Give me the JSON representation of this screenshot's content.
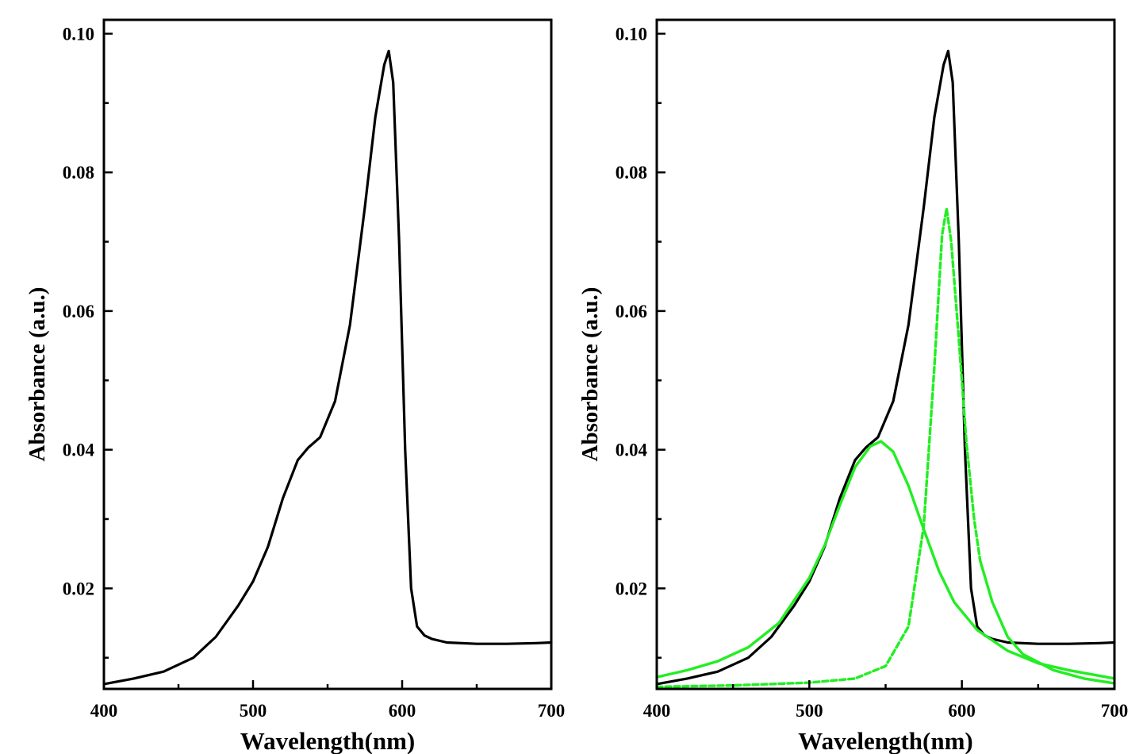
{
  "chart_data": [
    {
      "type": "line",
      "title": "",
      "xlabel": "Wavelength(nm)",
      "ylabel": "Absorbance (a.u.)",
      "xlim": [
        400,
        700
      ],
      "ylim": [
        0.0055,
        0.102
      ],
      "xticks": [
        400,
        500,
        600,
        700
      ],
      "yticks": [
        0.02,
        0.04,
        0.06,
        0.08,
        0.1
      ],
      "xtick_labels": [
        "400",
        "500",
        "600",
        "700"
      ],
      "ytick_labels": [
        "0.02",
        "0.04",
        "0.06",
        "0.08",
        "0.10"
      ],
      "grid": false,
      "legend": "none",
      "series": [
        {
          "color": "#000000",
          "style": "solid",
          "x": [
            400,
            420,
            440,
            460,
            475,
            490,
            500,
            510,
            520,
            530,
            537,
            545,
            555,
            565,
            575,
            582,
            588,
            591,
            594,
            598,
            602,
            606,
            610,
            615,
            620,
            630,
            650,
            670,
            690,
            700
          ],
          "y": [
            0.0062,
            0.007,
            0.008,
            0.01,
            0.013,
            0.0175,
            0.021,
            0.026,
            0.033,
            0.0385,
            0.0403,
            0.0418,
            0.047,
            0.058,
            0.075,
            0.088,
            0.0955,
            0.0975,
            0.093,
            0.07,
            0.04,
            0.02,
            0.0145,
            0.0132,
            0.0127,
            0.0122,
            0.012,
            0.012,
            0.0121,
            0.0122
          ]
        }
      ]
    },
    {
      "type": "line",
      "title": "",
      "xlabel": "Wavelength(nm)",
      "ylabel": "Absorbance (a.u.)",
      "xlim": [
        400,
        700
      ],
      "ylim": [
        0.0055,
        0.102
      ],
      "xticks": [
        400,
        500,
        600,
        700
      ],
      "yticks": [
        0.02,
        0.04,
        0.06,
        0.08,
        0.1
      ],
      "xtick_labels": [
        "400",
        "500",
        "600",
        "700"
      ],
      "ytick_labels": [
        "0.02",
        "0.04",
        "0.06",
        "0.08",
        "0.10"
      ],
      "grid": false,
      "legend": "none",
      "series": [
        {
          "color": "#000000",
          "style": "solid",
          "x": [
            400,
            420,
            440,
            460,
            475,
            490,
            500,
            510,
            520,
            530,
            537,
            545,
            555,
            565,
            575,
            582,
            588,
            591,
            594,
            598,
            602,
            606,
            610,
            615,
            620,
            630,
            650,
            670,
            690,
            700
          ],
          "y": [
            0.0062,
            0.007,
            0.008,
            0.01,
            0.013,
            0.0175,
            0.021,
            0.026,
            0.033,
            0.0385,
            0.0403,
            0.0418,
            0.047,
            0.058,
            0.075,
            0.088,
            0.0955,
            0.0975,
            0.093,
            0.07,
            0.04,
            0.02,
            0.0145,
            0.0132,
            0.0127,
            0.0122,
            0.012,
            0.012,
            0.0121,
            0.0122
          ]
        },
        {
          "color": "#22ee22",
          "style": "solid",
          "x": [
            400,
            420,
            440,
            460,
            480,
            500,
            510,
            520,
            530,
            540,
            547,
            555,
            565,
            575,
            585,
            595,
            610,
            630,
            650,
            670,
            700
          ],
          "y": [
            0.0072,
            0.0082,
            0.0095,
            0.0115,
            0.015,
            0.0215,
            0.0262,
            0.032,
            0.0375,
            0.0405,
            0.0412,
            0.0397,
            0.0348,
            0.0285,
            0.0225,
            0.018,
            0.014,
            0.011,
            0.0092,
            0.0082,
            0.007
          ]
        },
        {
          "color": "#22ee22",
          "style": "dash-segment",
          "x": [
            400,
            450,
            500,
            530,
            550,
            565,
            575,
            582,
            587,
            590,
            593,
            598,
            603,
            608,
            612
          ],
          "y": [
            0.0058,
            0.006,
            0.0064,
            0.007,
            0.0088,
            0.0145,
            0.029,
            0.052,
            0.071,
            0.0748,
            0.07,
            0.056,
            0.041,
            0.03,
            0.024
          ]
        },
        {
          "color": "#22ee22",
          "style": "solid",
          "x": [
            612,
            620,
            630,
            640,
            660,
            680,
            700
          ],
          "y": [
            0.024,
            0.018,
            0.013,
            0.0105,
            0.0082,
            0.007,
            0.0063
          ]
        }
      ]
    }
  ]
}
